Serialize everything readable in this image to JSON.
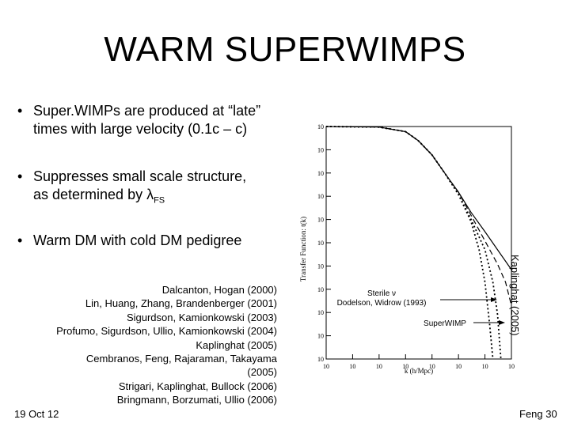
{
  "slide": {
    "title": "WARM SUPERWIMPS",
    "bullets": [
      {
        "line1": "Super.WIMPs are produced at “late”",
        "line2": "times with large velocity (0.1c – c)"
      },
      {
        "line1": "Suppresses small scale structure,",
        "line2_prefix": "as determined by ",
        "lambda": "λ",
        "sub": "FS"
      },
      {
        "line1": "Warm DM with cold DM pedigree"
      }
    ],
    "bullet_glyph": "•",
    "references": [
      "Dalcanton, Hogan (2000)",
      "Lin, Huang, Zhang, Brandenberger (2001)",
      "Sigurdson, Kamionkowski (2003)",
      "Profumo, Sigurdson, Ullio, Kamionkowski (2004)",
      "Kaplinghat (2005)",
      "Cembranos, Feng, Rajaraman, Takayama",
      "(2005)",
      "Strigari, Kaplinghat, Bullock (2006)",
      "Bringmann, Borzumati, Ullio (2006)"
    ],
    "plot_credit": "Kaplinghat (2005)",
    "annotations": {
      "sterile_line1": "Sterile ν",
      "sterile_line2": "Dodelson, Widrow (1993)",
      "superwimp": "SuperWIMP"
    },
    "footer": {
      "date": "19 Oct 12",
      "page": "Feng  30"
    }
  },
  "chart_data": {
    "type": "line",
    "ylabel": "Transfer Function: t(k)",
    "xlabel": "k (h/Mpc)",
    "xscale": "log",
    "yscale": "log",
    "xlim": [
      1e-05,
      100
    ],
    "ylim": [
      1e-10,
      1
    ],
    "x_ticks": [
      {
        "value": 1e-05,
        "label": "10"
      },
      {
        "value": 0.0001,
        "label": "10"
      },
      {
        "value": 0.001,
        "label": "10"
      },
      {
        "value": 0.01,
        "label": "10"
      },
      {
        "value": 0.1,
        "label": "10"
      },
      {
        "value": 1,
        "label": "10"
      },
      {
        "value": 10,
        "label": "10"
      },
      {
        "value": 100,
        "label": "10"
      }
    ],
    "y_ticks": [
      {
        "value": 1,
        "label": "10"
      },
      {
        "value": 0.1,
        "label": "10"
      },
      {
        "value": 0.01,
        "label": "10"
      },
      {
        "value": 0.001,
        "label": "10"
      },
      {
        "value": 0.0001,
        "label": "10"
      },
      {
        "value": 1e-05,
        "label": "10"
      },
      {
        "value": 1e-06,
        "label": "10"
      },
      {
        "value": 1e-07,
        "label": "10"
      },
      {
        "value": 1e-08,
        "label": "10"
      },
      {
        "value": 1e-09,
        "label": "10"
      },
      {
        "value": 1e-10,
        "label": "10"
      }
    ],
    "series": [
      {
        "style": "solid",
        "points": [
          [
            1e-05,
            1
          ],
          [
            0.001,
            0.95
          ],
          [
            0.01,
            0.6
          ],
          [
            0.03,
            0.25
          ],
          [
            0.1,
            0.06
          ],
          [
            0.3,
            0.01
          ],
          [
            1,
            0.0015
          ],
          [
            3,
            0.0002
          ],
          [
            10,
            3e-05
          ],
          [
            30,
            5e-06
          ],
          [
            100,
            7e-07
          ]
        ]
      },
      {
        "style": "dashed",
        "points": [
          [
            1e-05,
            1
          ],
          [
            0.001,
            0.95
          ],
          [
            0.01,
            0.6
          ],
          [
            0.03,
            0.25
          ],
          [
            0.1,
            0.06
          ],
          [
            0.3,
            0.01
          ],
          [
            1,
            0.0015
          ],
          [
            3,
            0.00015
          ],
          [
            10,
            1.2e-05
          ],
          [
            30,
            1.2e-06
          ],
          [
            60,
            2e-07
          ],
          [
            100,
            2e-08
          ]
        ]
      },
      {
        "style": "dotted",
        "points": [
          [
            1e-05,
            1
          ],
          [
            0.001,
            0.95
          ],
          [
            0.01,
            0.6
          ],
          [
            0.03,
            0.25
          ],
          [
            0.1,
            0.06
          ],
          [
            0.3,
            0.01
          ],
          [
            1,
            0.0012
          ],
          [
            3,
            8e-05
          ],
          [
            6,
            5e-06
          ],
          [
            10,
            2e-07
          ],
          [
            15,
            3e-09
          ],
          [
            20,
            1e-10
          ]
        ]
      },
      {
        "style": "dotted",
        "points": [
          [
            1e-05,
            1
          ],
          [
            0.001,
            0.95
          ],
          [
            0.01,
            0.6
          ],
          [
            0.03,
            0.25
          ],
          [
            0.1,
            0.06
          ],
          [
            0.3,
            0.01
          ],
          [
            1,
            0.0012
          ],
          [
            3,
            0.0001
          ],
          [
            10,
            5e-06
          ],
          [
            20,
            2e-07
          ],
          [
            30,
            8e-09
          ],
          [
            40,
            1e-10
          ]
        ]
      }
    ]
  }
}
